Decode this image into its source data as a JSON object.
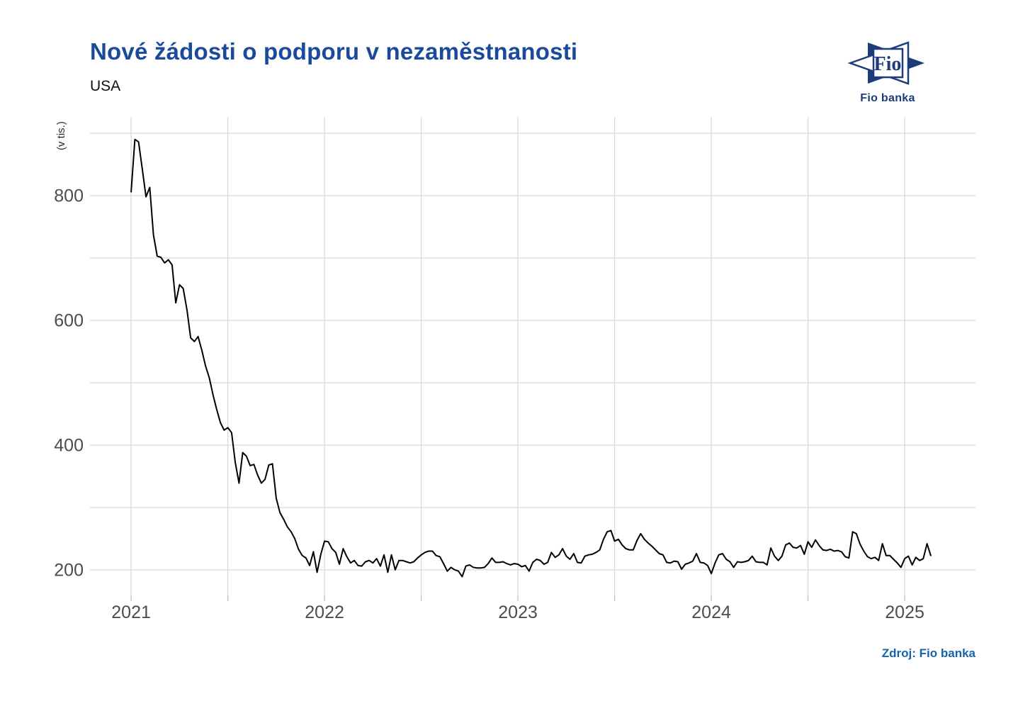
{
  "header": {
    "title": "Nové žádosti o podporu v nezaměstnanosti",
    "subtitle": "USA"
  },
  "logo": {
    "star_text": "Fio",
    "caption": "Fio banka"
  },
  "footer": {
    "source": "Zdroj: Fio banka"
  },
  "colors": {
    "title": "#1a4a9c",
    "source": "#1563ab",
    "logo": "#1e3c7b",
    "line": "#000000",
    "gridline": "#d9d9d9",
    "axis_tick": "#c2c2c2",
    "tick_label": "#4d4d4d",
    "background": "#ffffff"
  },
  "chart_data": {
    "type": "line",
    "title": "Nové žádosti o podporu v nezaměstnanosti",
    "subtitle": "USA",
    "xlabel": "",
    "ylabel": "(v tis.)",
    "grid": true,
    "legend": false,
    "x_start_year": 2021,
    "points_per_year": 52,
    "xlim": [
      2020.787,
      2025.366
    ],
    "ylim": [
      159,
      926
    ],
    "x_tick_years": [
      2021,
      2022,
      2023,
      2024,
      2025
    ],
    "x_gridlines": [
      2021,
      2021.5,
      2022,
      2022.5,
      2023,
      2023.5,
      2024,
      2024.5,
      2025
    ],
    "y_ticks_labeled": [
      200,
      400,
      600,
      800
    ],
    "y_gridlines": [
      200,
      300,
      400,
      500,
      600,
      700,
      800,
      900
    ],
    "series": [
      {
        "name": "USA",
        "values": [
          806,
          890,
          886,
          842,
          798,
          813,
          737,
          703,
          701,
          692,
          697,
          689,
          628,
          657,
          651,
          617,
          572,
          566,
          574,
          552,
          527,
          508,
          481,
          457,
          436,
          424,
          428,
          420,
          372,
          339,
          388,
          382,
          367,
          369,
          352,
          339,
          345,
          368,
          370,
          315,
          292,
          281,
          269,
          261,
          250,
          233,
          223,
          219,
          207,
          229,
          196,
          225,
          246,
          245,
          234,
          228,
          209,
          234,
          221,
          211,
          215,
          207,
          206,
          213,
          215,
          211,
          218,
          206,
          224,
          196,
          224,
          200,
          215,
          215,
          213,
          211,
          213,
          219,
          224,
          228,
          230,
          230,
          223,
          221,
          210,
          198,
          204,
          200,
          198,
          189,
          206,
          208,
          204,
          203,
          203,
          204,
          210,
          219,
          212,
          212,
          213,
          210,
          208,
          210,
          209,
          205,
          207,
          198,
          212,
          217,
          215,
          209,
          212,
          228,
          220,
          224,
          234,
          222,
          217,
          226,
          212,
          211,
          222,
          224,
          225,
          228,
          232,
          249,
          261,
          263,
          246,
          249,
          240,
          234,
          232,
          232,
          247,
          258,
          249,
          243,
          238,
          232,
          226,
          224,
          212,
          211,
          214,
          213,
          201,
          209,
          211,
          214,
          226,
          212,
          211,
          207,
          194,
          211,
          224,
          226,
          217,
          213,
          204,
          213,
          212,
          213,
          215,
          222,
          213,
          212,
          212,
          208,
          235,
          222,
          215,
          222,
          240,
          243,
          236,
          235,
          239,
          225,
          245,
          236,
          248,
          239,
          232,
          231,
          233,
          230,
          231,
          229,
          221,
          219,
          261,
          258,
          241,
          230,
          221,
          218,
          220,
          215,
          242,
          223,
          223,
          217,
          211,
          204,
          218,
          222,
          208,
          220,
          215,
          218,
          242,
          223
        ]
      }
    ]
  }
}
